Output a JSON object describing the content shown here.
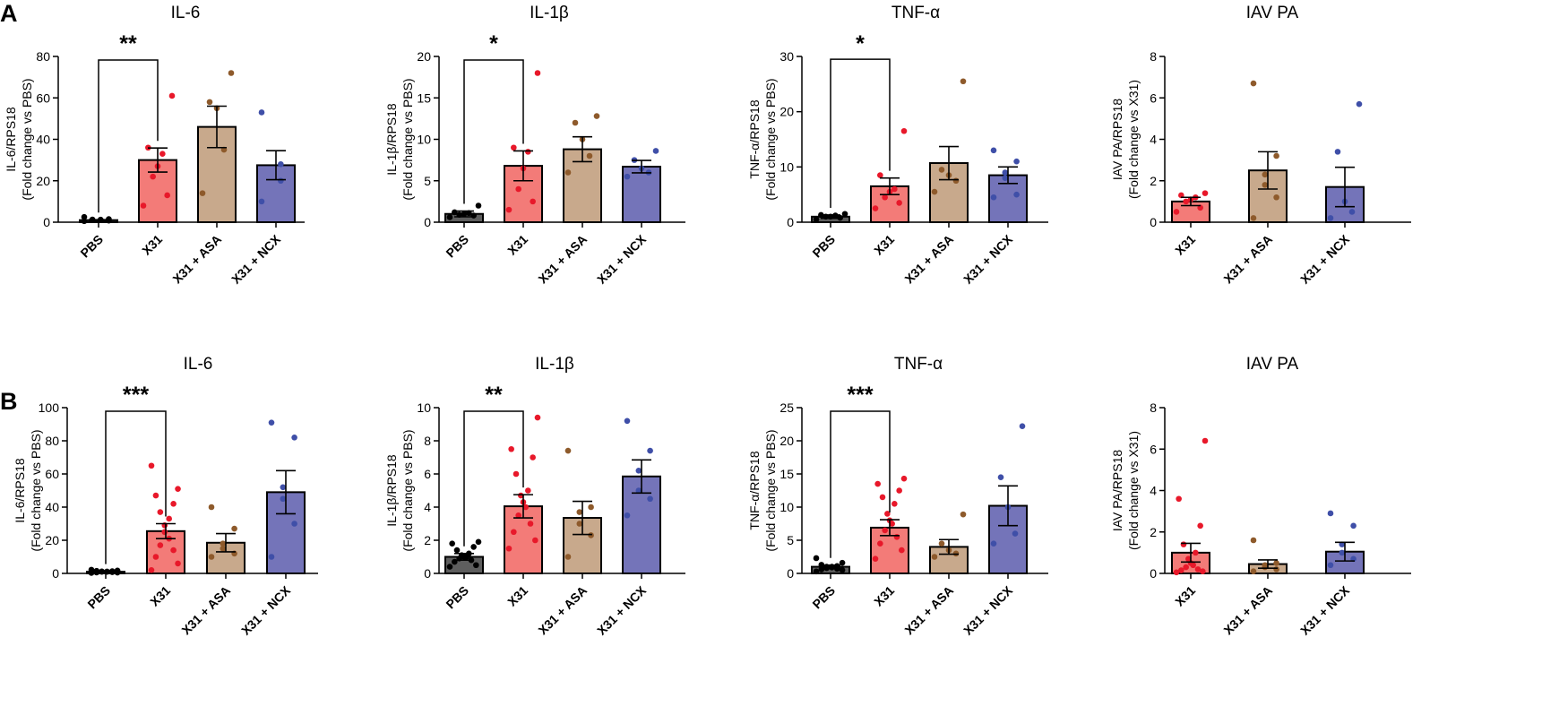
{
  "panels": [
    "A",
    "B"
  ],
  "colors": {
    "PBS": {
      "fill": "#5e5e5e",
      "dot": "#000000"
    },
    "X31": {
      "fill": "#f37b78",
      "dot": "#e8182a"
    },
    "X31 + ASA": {
      "fill": "#c8a98c",
      "dot": "#8e5a2b"
    },
    "X31 + NCX": {
      "fill": "#7474b9",
      "dot": "#3f4fa8"
    }
  },
  "chart_data": [
    {
      "type": "bar",
      "panel": "A",
      "title": "IL-6",
      "ylabel": [
        "IL-6/RPS18",
        "(Fold change vs PBS)"
      ],
      "ylim": [
        0,
        80
      ],
      "yticks": [
        0,
        20,
        40,
        60,
        80
      ],
      "categories": [
        "PBS",
        "X31",
        "X31 + ASA",
        "X31 + NCX"
      ],
      "values": [
        1,
        30,
        46,
        27.5
      ],
      "sem": [
        0.2,
        5.8,
        10,
        7
      ],
      "points": [
        [
          0.5,
          0.8,
          1,
          1.1,
          1.2,
          1.3,
          1.5,
          2.5
        ],
        [
          8,
          13,
          22,
          27,
          33,
          36,
          61
        ],
        [
          14,
          35,
          55,
          58,
          72
        ],
        [
          10,
          20,
          28,
          53
        ]
      ],
      "significance": {
        "label": "**",
        "from": 0,
        "to": 1,
        "y": 82
      }
    },
    {
      "type": "bar",
      "panel": "A",
      "title": "IL-1β",
      "ylabel": [
        "IL-1β/RPS18",
        "(Fold change vs PBS)"
      ],
      "ylim": [
        0,
        20
      ],
      "yticks": [
        0,
        5,
        10,
        15,
        20
      ],
      "categories": [
        "PBS",
        "X31",
        "X31 + ASA",
        "X31 + NCX"
      ],
      "values": [
        1,
        6.8,
        8.8,
        6.7
      ],
      "sem": [
        0.35,
        1.8,
        1.5,
        0.75
      ],
      "points": [
        [
          0.6,
          0.8,
          0.9,
          1,
          1.1,
          1.2,
          2
        ],
        [
          1.5,
          2.5,
          4,
          6.5,
          8.5,
          9,
          18
        ],
        [
          6,
          8,
          10,
          12,
          12.8
        ],
        [
          5.5,
          6,
          6.5,
          7.5,
          8.6
        ]
      ],
      "significance": {
        "label": "*",
        "from": 0,
        "to": 1,
        "y": 20.5
      }
    },
    {
      "type": "bar",
      "panel": "A",
      "title": "TNF-α",
      "ylabel": [
        "TNF-α/RPS18",
        "(Fold change vs PBS)"
      ],
      "ylim": [
        0,
        30
      ],
      "yticks": [
        0,
        10,
        20,
        30
      ],
      "categories": [
        "PBS",
        "X31",
        "X31 + ASA",
        "X31 + NCX"
      ],
      "values": [
        1,
        6.5,
        10.7,
        8.5
      ],
      "sem": [
        0.3,
        1.5,
        3,
        1.5
      ],
      "points": [
        [
          0.5,
          0.8,
          1,
          1,
          1.2,
          1.3,
          1.5
        ],
        [
          2.5,
          3.5,
          4.5,
          5.5,
          6,
          8.5,
          16.5
        ],
        [
          5.5,
          7.5,
          8.5,
          9.5,
          25.5
        ],
        [
          4.5,
          5,
          8,
          9,
          11,
          13
        ]
      ],
      "significance": {
        "label": "*",
        "from": 0,
        "to": 1,
        "y": 29.5
      }
    },
    {
      "type": "bar",
      "panel": "A",
      "title": "IAV PA",
      "ylabel": [
        "IAV PA/RPS18",
        "(Fold change vs X31)"
      ],
      "ylim": [
        0,
        8
      ],
      "yticks": [
        0,
        2,
        4,
        6,
        8
      ],
      "categories": [
        "X31",
        "X31 + ASA",
        "X31 + NCX"
      ],
      "values": [
        1,
        2.5,
        1.7
      ],
      "sem": [
        0.2,
        0.9,
        0.95
      ],
      "points": [
        [
          0.5,
          0.7,
          1,
          1.1,
          1.2,
          1.3,
          1.4
        ],
        [
          0.2,
          1.2,
          1.8,
          2.3,
          3.2,
          6.7
        ],
        [
          0.2,
          0.5,
          1,
          3.4,
          5.7
        ]
      ],
      "significance": null
    },
    {
      "type": "bar",
      "panel": "B",
      "title": "IL-6",
      "ylabel": [
        "IL-6/RPS18",
        "(Fold change vs PBS)"
      ],
      "ylim": [
        0,
        100
      ],
      "yticks": [
        0,
        20,
        40,
        60,
        80,
        100
      ],
      "categories": [
        "PBS",
        "X31",
        "X31 + ASA",
        "X31 + NCX"
      ],
      "values": [
        1,
        25.5,
        18.5,
        49
      ],
      "sem": [
        0.3,
        4.5,
        5.5,
        13
      ],
      "points": [
        [
          0.3,
          0.5,
          0.6,
          0.8,
          1,
          1,
          1.1,
          1.2,
          1.3,
          1.5,
          1.7,
          2.2
        ],
        [
          2,
          6,
          10,
          14,
          17,
          21,
          25,
          29,
          33,
          37,
          42,
          47,
          51,
          65
        ],
        [
          10,
          12,
          15,
          18,
          27,
          40
        ],
        [
          10,
          30,
          45,
          52,
          82,
          91
        ]
      ],
      "significance": {
        "label": "***",
        "from": 0,
        "to": 1,
        "y": 102
      }
    },
    {
      "type": "bar",
      "panel": "B",
      "title": "IL-1β",
      "ylabel": [
        "IL-1β/RPS18",
        "(Fold change vs PBS)"
      ],
      "ylim": [
        0,
        10
      ],
      "yticks": [
        0,
        2,
        4,
        6,
        8,
        10
      ],
      "categories": [
        "PBS",
        "X31",
        "X31 + ASA",
        "X31 + NCX"
      ],
      "values": [
        1,
        4.05,
        3.35,
        5.85
      ],
      "sem": [
        0.2,
        0.7,
        1,
        1
      ],
      "points": [
        [
          0.4,
          0.5,
          0.7,
          0.8,
          0.9,
          1,
          1,
          1.1,
          1.2,
          1.4,
          1.6,
          1.8,
          1.9
        ],
        [
          1.5,
          2,
          2.5,
          3,
          3.5,
          4,
          4.3,
          4.7,
          5,
          6,
          7,
          7.5,
          9.4
        ],
        [
          1,
          2.3,
          3,
          3.7,
          4,
          7.4
        ],
        [
          3.5,
          4.5,
          5,
          6.2,
          7.4,
          9.2
        ]
      ],
      "significance": {
        "label": "**",
        "from": 0,
        "to": 1,
        "y": 10.2
      }
    },
    {
      "type": "bar",
      "panel": "B",
      "title": "TNF-α",
      "ylabel": [
        "TNF-α/RPS18",
        "(Fold change vs PBS)"
      ],
      "ylim": [
        0,
        25
      ],
      "yticks": [
        0,
        5,
        10,
        15,
        20,
        25
      ],
      "categories": [
        "PBS",
        "X31",
        "X31 + ASA",
        "X31 + NCX"
      ],
      "values": [
        1,
        6.9,
        4,
        10.2
      ],
      "sem": [
        0.25,
        1.2,
        1.1,
        3
      ],
      "points": [
        [
          0.3,
          0.5,
          0.6,
          0.7,
          0.8,
          0.9,
          1,
          1,
          1.1,
          1.3,
          1.6,
          2.3
        ],
        [
          2.2,
          3.5,
          4.5,
          5.5,
          6.5,
          7.5,
          8,
          9,
          10.5,
          11.5,
          12.5,
          13.5,
          14.3
        ],
        [
          2.5,
          3,
          3.5,
          4.5,
          8.9
        ],
        [
          4.5,
          6,
          10,
          14.5,
          22.2
        ]
      ],
      "significance": {
        "label": "***",
        "from": 0,
        "to": 1,
        "y": 25.5
      }
    },
    {
      "type": "bar",
      "panel": "B",
      "title": "IAV PA",
      "ylabel": [
        "IAV PA/RPS18",
        "(Fold change vs X31)"
      ],
      "ylim": [
        0,
        8
      ],
      "yticks": [
        0,
        2,
        4,
        6,
        8
      ],
      "categories": [
        "X31",
        "X31 + ASA",
        "X31 + NCX"
      ],
      "values": [
        1,
        0.45,
        1.05
      ],
      "sem": [
        0.45,
        0.2,
        0.45
      ],
      "points": [
        [
          0.05,
          0.1,
          0.15,
          0.2,
          0.3,
          0.4,
          0.5,
          0.7,
          1,
          1.4,
          2.3,
          3.6,
          6.4
        ],
        [
          0.1,
          0.2,
          0.3,
          0.4,
          0.5,
          1.6
        ],
        [
          0.4,
          0.7,
          1,
          1.4,
          2.3,
          2.9
        ]
      ],
      "significance": null
    }
  ]
}
